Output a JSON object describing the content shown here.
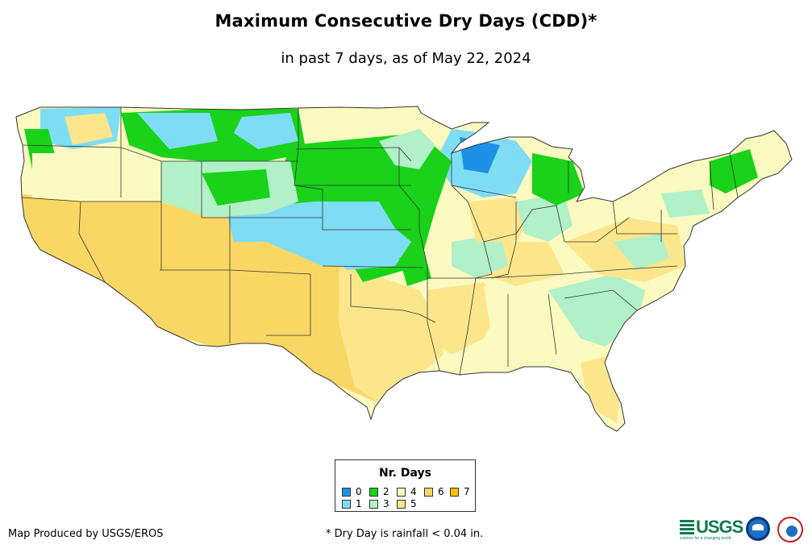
{
  "title": "Maximum Consecutive Dry Days (CDD)*",
  "subtitle": "in past 7 days, as of May 22, 2024",
  "legend": {
    "title": "Nr. Days",
    "items": [
      {
        "label": "0",
        "color": "#1e90e6"
      },
      {
        "label": "1",
        "color": "#7fdcf5"
      },
      {
        "label": "2",
        "color": "#19d219"
      },
      {
        "label": "3",
        "color": "#b2f0c8"
      },
      {
        "label": "4",
        "color": "#fafac0"
      },
      {
        "label": "5",
        "color": "#fce68c"
      },
      {
        "label": "6",
        "color": "#fad764"
      },
      {
        "label": "7",
        "color": "#fcc000"
      }
    ]
  },
  "credit": "Map Produced by USGS/EROS",
  "footnote": "* Dry Day is rainfall < 0.04 in.",
  "logos": {
    "usgs_text": "USGS",
    "usgs_tagline": "science for a changing world"
  }
}
